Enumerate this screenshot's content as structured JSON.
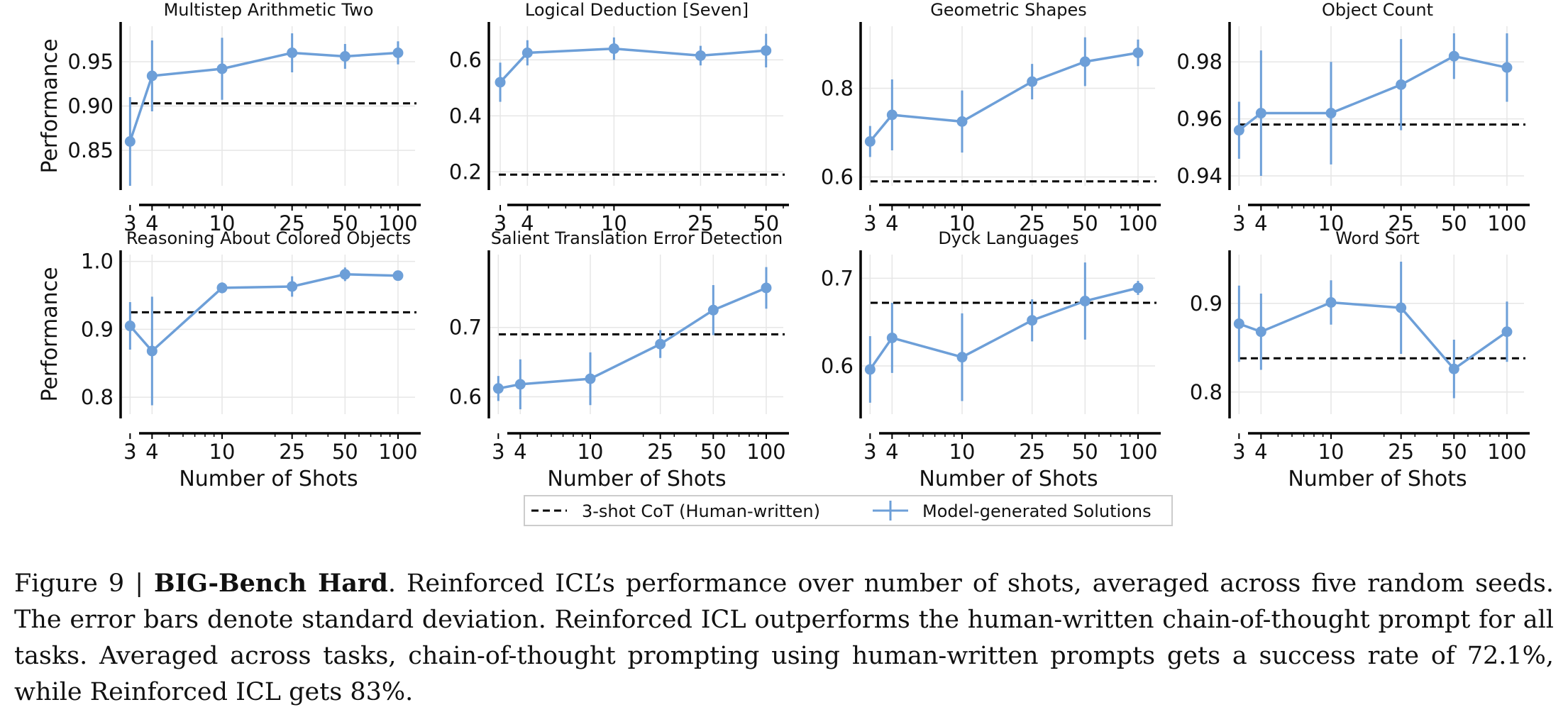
{
  "figure": {
    "legend": {
      "baseline_label": "3-shot CoT (Human-written)",
      "model_label": "Model-generated Solutions"
    },
    "caption": {
      "prefix": "Figure 9 | ",
      "bold": "BIG-Bench Hard",
      "text": ". Reinforced ICL’s performance over number of shots, averaged across five random seeds. The error bars denote standard deviation. Reinforced ICL outperforms the human-written chain-of-thought prompt for all tasks. Averaged across tasks, chain-of-thought prompting using human-written prompts gets a success rate of 72.1%, while Reinforced ICL gets 83%."
    }
  },
  "colors": {
    "series": "#6d9fd8",
    "baseline": "#000000",
    "grid": "#e6e6e6"
  },
  "chart_data": [
    {
      "type": "line",
      "title": "Multistep Arithmetic Two",
      "xlabel": "",
      "ylabel": "Performance",
      "xscale": "log",
      "xlim": [
        2.7,
        125
      ],
      "xticks": [
        3,
        4,
        10,
        25,
        50,
        100
      ],
      "ylim": [
        0.81,
        0.99
      ],
      "yticks": [
        0.85,
        0.9,
        0.95
      ],
      "yticklabels": [
        "0.85",
        "0.90",
        "0.95"
      ],
      "baseline": 0.903,
      "x": [
        3,
        4,
        10,
        25,
        50,
        100
      ],
      "y": [
        0.86,
        0.934,
        0.942,
        0.96,
        0.956,
        0.96
      ],
      "err": [
        0.05,
        0.04,
        0.035,
        0.022,
        0.014,
        0.013
      ]
    },
    {
      "type": "line",
      "title": "Logical Deduction [Seven]",
      "xlabel": "",
      "ylabel": "",
      "xscale": "log",
      "xlim": [
        2.7,
        60
      ],
      "xticks": [
        3,
        4,
        10,
        25,
        50
      ],
      "ylim": [
        0.15,
        0.72
      ],
      "yticks": [
        0.2,
        0.4,
        0.6
      ],
      "yticklabels": [
        "0.2",
        "0.4",
        "0.6"
      ],
      "baseline": 0.19,
      "x": [
        3,
        4,
        10,
        25,
        50
      ],
      "y": [
        0.52,
        0.625,
        0.64,
        0.615,
        0.633
      ],
      "err": [
        0.07,
        0.045,
        0.04,
        0.035,
        0.06
      ]
    },
    {
      "type": "line",
      "title": "Geometric Shapes",
      "xlabel": "",
      "ylabel": "",
      "xscale": "log",
      "xlim": [
        2.7,
        125
      ],
      "xticks": [
        3,
        4,
        10,
        25,
        50,
        100
      ],
      "ylim": [
        0.58,
        0.94
      ],
      "yticks": [
        0.6,
        0.8
      ],
      "yticklabels": [
        "0.6",
        "0.8"
      ],
      "baseline": 0.59,
      "x": [
        3,
        4,
        10,
        25,
        50,
        100
      ],
      "y": [
        0.68,
        0.74,
        0.725,
        0.815,
        0.86,
        0.88
      ],
      "err": [
        0.035,
        0.08,
        0.07,
        0.04,
        0.055,
        0.03
      ]
    },
    {
      "type": "line",
      "title": "Object Count",
      "xlabel": "",
      "ylabel": "",
      "xscale": "log",
      "xlim": [
        2.7,
        125
      ],
      "xticks": [
        3,
        4,
        10,
        25,
        50,
        100
      ],
      "ylim": [
        0.9365,
        0.9925
      ],
      "yticks": [
        0.94,
        0.96,
        0.98
      ],
      "yticklabels": [
        "0.94",
        "0.96",
        "0.98"
      ],
      "baseline": 0.958,
      "x": [
        3,
        4,
        10,
        25,
        50,
        100
      ],
      "y": [
        0.956,
        0.962,
        0.962,
        0.972,
        0.982,
        0.978
      ],
      "err": [
        0.01,
        0.022,
        0.018,
        0.016,
        0.008,
        0.012
      ]
    },
    {
      "type": "line",
      "title": "Reasoning About Colored Objects",
      "xlabel": "Number of Shots",
      "ylabel": "Performance",
      "xscale": "log",
      "xlim": [
        2.7,
        125
      ],
      "xticks": [
        3,
        4,
        10,
        25,
        50,
        100
      ],
      "ylim": [
        0.775,
        1.01
      ],
      "yticks": [
        0.8,
        0.9,
        1.0
      ],
      "yticklabels": [
        "0.8",
        "0.9",
        "1.0"
      ],
      "baseline": 0.925,
      "x": [
        3,
        4,
        10,
        25,
        50,
        100
      ],
      "y": [
        0.905,
        0.868,
        0.961,
        0.963,
        0.981,
        0.979
      ],
      "err": [
        0.035,
        0.08,
        0.008,
        0.015,
        0.01,
        0.006
      ]
    },
    {
      "type": "line",
      "title": "Salient Translation Error Detection",
      "xlabel": "Number of Shots",
      "ylabel": "",
      "xscale": "log",
      "xlim": [
        2.7,
        125
      ],
      "xticks": [
        3,
        4,
        10,
        25,
        50,
        100
      ],
      "ylim": [
        0.575,
        0.805
      ],
      "yticks": [
        0.6,
        0.7
      ],
      "yticklabels": [
        "0.6",
        "0.7"
      ],
      "baseline": 0.69,
      "x": [
        3,
        4,
        10,
        25,
        50,
        100
      ],
      "y": [
        0.612,
        0.618,
        0.626,
        0.676,
        0.725,
        0.757
      ],
      "err": [
        0.018,
        0.036,
        0.038,
        0.02,
        0.036,
        0.03
      ]
    },
    {
      "type": "line",
      "title": "Dyck Languages",
      "xlabel": "Number of Shots",
      "ylabel": "",
      "xscale": "log",
      "xlim": [
        2.7,
        125
      ],
      "xticks": [
        3,
        4,
        10,
        25,
        50,
        100
      ],
      "ylim": [
        0.545,
        0.727
      ],
      "yticks": [
        0.6,
        0.7
      ],
      "yticklabels": [
        "0.6",
        "0.7"
      ],
      "baseline": 0.672,
      "x": [
        3,
        4,
        10,
        25,
        50,
        100
      ],
      "y": [
        0.596,
        0.632,
        0.61,
        0.652,
        0.674,
        0.689
      ],
      "err": [
        0.038,
        0.04,
        0.05,
        0.024,
        0.044,
        0.008
      ]
    },
    {
      "type": "line",
      "title": "Word Sort",
      "xlabel": "Number of Shots",
      "ylabel": "",
      "xscale": "log",
      "xlim": [
        2.7,
        125
      ],
      "xticks": [
        3,
        4,
        10,
        25,
        50,
        100
      ],
      "ylim": [
        0.775,
        0.955
      ],
      "yticks": [
        0.8,
        0.9
      ],
      "yticklabels": [
        "0.8",
        "0.9"
      ],
      "baseline": 0.838,
      "x": [
        3,
        4,
        10,
        25,
        50,
        100
      ],
      "y": [
        0.877,
        0.868,
        0.901,
        0.895,
        0.826,
        0.868
      ],
      "err": [
        0.043,
        0.043,
        0.025,
        0.052,
        0.033,
        0.034
      ]
    }
  ]
}
